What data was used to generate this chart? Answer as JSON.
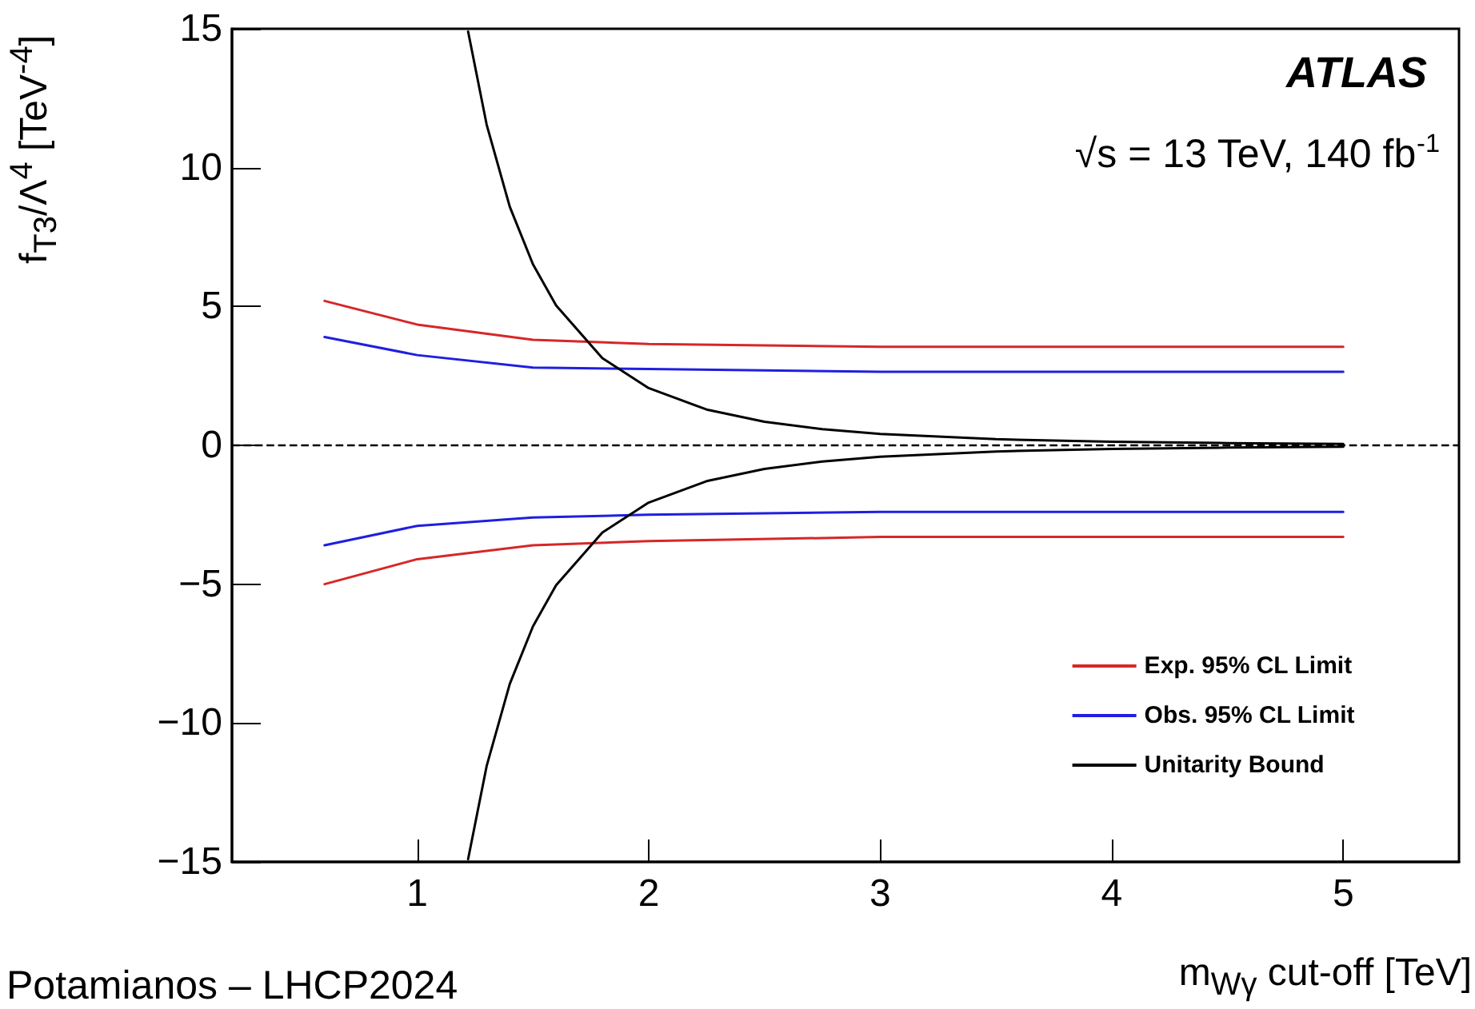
{
  "chart_data": {
    "type": "line",
    "xlabel": "m$_{Wγ}$ cut-off [TeV]",
    "ylabel": "f$_{T3}$/Λ$^{4}$ [TeV$^{-4}$]",
    "xlim": [
      0.2,
      5.5
    ],
    "xticks": [
      1,
      2,
      3,
      4,
      5
    ],
    "ylim": [
      -15,
      15
    ],
    "yticks": [
      -15,
      -10,
      -5,
      0,
      5,
      10,
      15
    ],
    "series": [
      {
        "name": "Exp. 95% CL Limit",
        "color": "#d62728",
        "x": [
          0.6,
          1.0,
          1.5,
          2,
          3,
          5
        ],
        "values": [
          5.2,
          4.35,
          3.8,
          3.65,
          3.55,
          3.55
        ]
      },
      {
        "color": "#d62728",
        "x": [
          0.6,
          1.0,
          1.5,
          2,
          3,
          5
        ],
        "values": [
          -5.0,
          -4.1,
          -3.6,
          -3.45,
          -3.3,
          -3.3
        ]
      },
      {
        "name": "Obs. 95% CL Limit",
        "color": "#1f1fe0",
        "x": [
          0.6,
          1.0,
          1.5,
          2,
          3,
          5
        ],
        "values": [
          3.9,
          3.25,
          2.8,
          2.75,
          2.65,
          2.65
        ]
      },
      {
        "color": "#1f1fe0",
        "x": [
          0.6,
          1.0,
          1.5,
          2,
          3,
          5
        ],
        "values": [
          -3.6,
          -2.9,
          -2.6,
          -2.5,
          -2.4,
          -2.4
        ]
      },
      {
        "name": "Unitarity Bound",
        "color": "#000000",
        "x": [
          1.22,
          1.3,
          1.4,
          1.5,
          1.6,
          1.8,
          2,
          2.25,
          2.5,
          2.75,
          3,
          3.5,
          4,
          4.5,
          5
        ],
        "values": [
          14.9,
          11.55,
          8.59,
          6.52,
          5.04,
          3.14,
          2.06,
          1.29,
          0.85,
          0.58,
          0.41,
          0.22,
          0.13,
          0.08,
          0.05
        ]
      },
      {
        "color": "#000000",
        "x": [
          1.22,
          1.3,
          1.4,
          1.5,
          1.6,
          1.8,
          2,
          2.25,
          2.5,
          2.75,
          3,
          3.5,
          4,
          4.5,
          5
        ],
        "values": [
          -14.9,
          -11.55,
          -8.59,
          -6.52,
          -5.04,
          -3.14,
          -2.06,
          -1.29,
          -0.85,
          -0.58,
          -0.41,
          -0.22,
          -0.13,
          -0.08,
          -0.05
        ]
      }
    ],
    "ref_lines": [
      {
        "axis": "y",
        "value": 0,
        "color": "#000000",
        "line_style": "dashed"
      }
    ],
    "annotations": [
      "ATLAS",
      "√s = 13 TeV, 140 fb$^{-1}$",
      "Potamianos – LHCP2024"
    ],
    "legend": "bottom right",
    "grid": false,
    "marker": "none",
    "line_style": "solid"
  }
}
